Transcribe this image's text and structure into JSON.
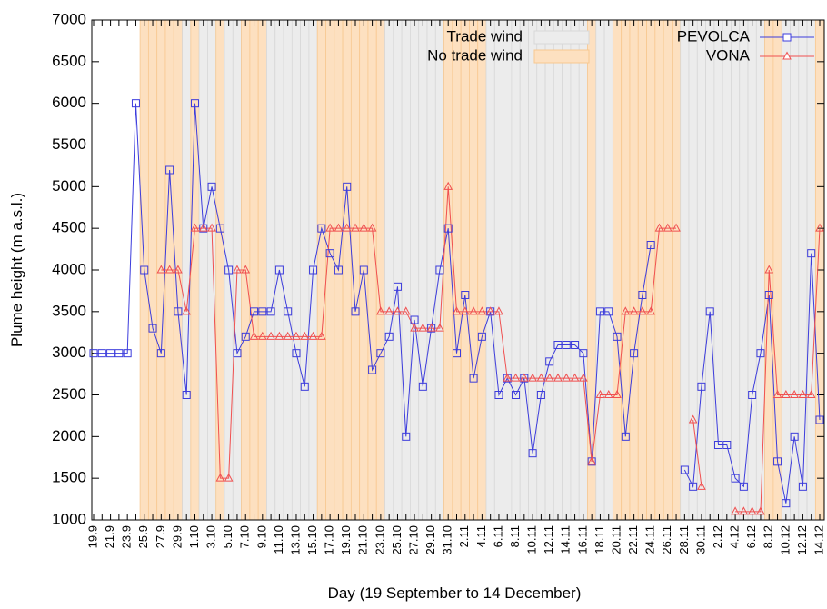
{
  "chart_data": {
    "type": "line",
    "ylabel": "Plume height (m a.s.l.)",
    "xlabel": "Day (19 September to 14 December)",
    "ylim": [
      1000,
      7000
    ],
    "yticks": [
      1000,
      1500,
      2000,
      2500,
      3000,
      3500,
      4000,
      4500,
      5000,
      5500,
      6000,
      6500,
      7000
    ],
    "categories": [
      "19.9",
      null,
      "21.9",
      null,
      "23.9",
      null,
      "25.9",
      null,
      "27.9",
      null,
      "29.9",
      null,
      "1.10",
      null,
      "3.10",
      null,
      "5.10",
      null,
      "7.10",
      null,
      "9.10",
      null,
      "11.10",
      null,
      "13.10",
      null,
      "15.10",
      null,
      "17.10",
      null,
      "19.10",
      null,
      "21.10",
      null,
      "23.10",
      null,
      "25.10",
      null,
      "27.10",
      null,
      "29.10",
      null,
      "31.10",
      null,
      "2.11",
      null,
      "4.11",
      null,
      "6.11",
      null,
      "8.11",
      null,
      "10.11",
      null,
      "12.11",
      null,
      "14.11",
      null,
      "16.11",
      null,
      "18.11",
      null,
      "20.11",
      null,
      "22.11",
      null,
      "24.11",
      null,
      "26.11",
      null,
      "28.11",
      null,
      "30.11",
      null,
      "2.12",
      null,
      "4.12",
      null,
      "6.12",
      null,
      "8.12",
      null,
      "10.12",
      null,
      "12.12",
      null,
      "14.12"
    ],
    "bands": [
      {
        "name": "Trade wind",
        "color": "#ececec"
      },
      {
        "name": "No trade wind",
        "color": "#fde0c0"
      }
    ],
    "trade_wind": [
      null,
      null,
      null,
      null,
      null,
      null,
      false,
      false,
      false,
      false,
      false,
      true,
      false,
      true,
      true,
      false,
      true,
      true,
      false,
      false,
      false,
      true,
      true,
      true,
      true,
      true,
      true,
      false,
      false,
      false,
      false,
      false,
      false,
      false,
      false,
      true,
      true,
      true,
      true,
      true,
      true,
      true,
      false,
      false,
      false,
      false,
      false,
      true,
      true,
      true,
      true,
      true,
      true,
      true,
      true,
      true,
      true,
      true,
      true,
      false,
      true,
      true,
      false,
      false,
      false,
      false,
      false,
      false,
      false,
      false,
      true,
      true,
      true,
      true,
      true,
      true,
      true,
      true,
      true,
      true,
      false,
      false,
      true,
      true,
      true,
      true,
      false
    ],
    "series": [
      {
        "name": "PEVOLCA",
        "color": "#3c3cdc",
        "marker": "square",
        "values": [
          3000,
          3000,
          3000,
          3000,
          3000,
          6000,
          4000,
          3300,
          3000,
          5200,
          3500,
          2500,
          6000,
          4500,
          5000,
          4500,
          4000,
          3000,
          3200,
          3500,
          3500,
          3500,
          4000,
          3500,
          3000,
          2600,
          4000,
          4500,
          4200,
          4000,
          5000,
          3500,
          4000,
          2800,
          3000,
          3200,
          3800,
          2000,
          3400,
          2600,
          3300,
          4000,
          4500,
          3000,
          3700,
          2700,
          3200,
          3500,
          2500,
          2700,
          2500,
          2700,
          1800,
          2500,
          2900,
          3100,
          3100,
          3100,
          3000,
          1700,
          3500,
          3500,
          3200,
          2000,
          3000,
          3700,
          4300,
          null,
          null,
          null,
          1600,
          1400,
          2600,
          3500,
          1900,
          1900,
          1500,
          1400,
          2500,
          3000,
          3700,
          1700,
          1200,
          2000,
          1400,
          4200,
          2200
        ]
      },
      {
        "name": "VONA",
        "color": "#f05050",
        "marker": "triangle",
        "values": [
          null,
          null,
          null,
          null,
          null,
          null,
          null,
          null,
          4000,
          4000,
          4000,
          3500,
          4500,
          4500,
          4500,
          1500,
          1500,
          4000,
          4000,
          3200,
          3200,
          3200,
          3200,
          3200,
          3200,
          3200,
          3200,
          3200,
          4500,
          4500,
          4500,
          4500,
          4500,
          4500,
          3500,
          3500,
          3500,
          3500,
          3300,
          3300,
          3300,
          3300,
          5000,
          3500,
          3500,
          3500,
          3500,
          3500,
          3500,
          2700,
          2700,
          2700,
          2700,
          2700,
          2700,
          2700,
          2700,
          2700,
          2700,
          1700,
          2500,
          2500,
          2500,
          3500,
          3500,
          3500,
          3500,
          4500,
          4500,
          4500,
          null,
          2200,
          1400,
          null,
          null,
          null,
          1100,
          1100,
          1100,
          1100,
          4000,
          2500,
          2500,
          2500,
          2500,
          2500,
          4500
        ]
      }
    ]
  }
}
